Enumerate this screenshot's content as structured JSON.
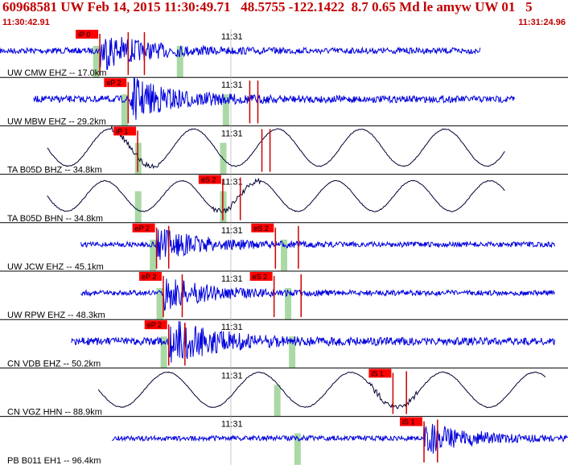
{
  "header": {
    "title": "60968581 UW Feb 14, 2015 11:30:49.71   48.5755 -122.1422  8.7 0.65 Md le amyw UW 01   5",
    "start_time": "11:30:42.91",
    "end_time": "11:31:24.96"
  },
  "colors": {
    "header_text": "#c00000",
    "trace_blue": "#0000dd",
    "trace_black": "#000033",
    "pick_box": "#ff0000",
    "pick_line": "#cc0000",
    "window": "#aad9a5",
    "tick_line": "#c8c8c8"
  },
  "chart_data": {
    "type": "line",
    "title": "60968581 UW Feb 14, 2015 11:30:49.71   48.5755 -122.1422  8.7 0.65 Md le amyw UW 01   5",
    "x_range": [
      "11:30:42.91",
      "11:31:24.96"
    ],
    "x_tick_label": "11:31",
    "x_tick_time": "11:31:00.00",
    "series": [
      {
        "name": "UW CMW EHZ -- 17.0km",
        "color": "blue",
        "wave": "noise",
        "amp": 0.35,
        "data_span": [
          "11:30:42.91",
          "11:31:18.5"
        ],
        "burst_time": "11:30:50.3",
        "picks": [
          {
            "label": "iP 0",
            "time": "11:30:50.3"
          }
        ],
        "windows": [
          "11:30:49.8",
          "11:30:56.0"
        ],
        "red_lines": [
          "11:30:52.4",
          "11:30:53.6"
        ]
      },
      {
        "name": "UW MBW EHZ -- 29.2km",
        "color": "blue",
        "wave": "noise",
        "amp": 0.4,
        "data_span": [
          "11:30:45.4",
          "11:31:21.0"
        ],
        "burst_time": "11:30:52.4",
        "picks": [
          {
            "label": "eP 2",
            "time": "11:30:52.4"
          }
        ],
        "windows": [
          "11:30:51.9",
          "11:30:59.4"
        ],
        "red_lines": [
          "11:31:01.4",
          "11:31:02.0"
        ]
      },
      {
        "name": "TA B05D BHZ -- 34.8km",
        "color": "black",
        "wave": "sine",
        "amp": 0.85,
        "period": 6.2,
        "data_span": [
          "11:30:46.4",
          "11:31:20.3"
        ],
        "burst_time": "11:30:52.9",
        "picks": [
          {
            "label": "iP 1",
            "time": "11:30:53.1"
          }
        ],
        "windows": [
          "11:30:52.9",
          "11:30:59.2"
        ],
        "red_lines": [
          "11:31:02.3",
          "11:31:02.9"
        ]
      },
      {
        "name": "TA B05D BHN -- 34.8km",
        "color": "black",
        "wave": "sine",
        "amp": 0.7,
        "period": 5.7,
        "data_span": [
          "11:30:46.4",
          "11:31:20.3"
        ],
        "burst_time": "11:31:00.4",
        "picks": [
          {
            "label": "eS 2",
            "time": "11:30:59.4"
          }
        ],
        "windows": [
          "11:30:52.9",
          "11:30:59.2"
        ],
        "red_lines": [
          "11:31:00.7"
        ]
      },
      {
        "name": "UW JCW EHZ -- 45.1km",
        "color": "blue",
        "wave": "noise",
        "amp": 0.3,
        "data_span": [
          "11:30:48.9",
          "11:31:24.0"
        ],
        "burst_time": "11:30:54.5",
        "picks": [
          {
            "label": "eP 2",
            "time": "11:30:54.5"
          },
          {
            "label": "eS 2",
            "time": "11:31:03.3"
          }
        ],
        "windows": [
          "11:30:54.0",
          "11:31:03.7"
        ],
        "red_lines": [
          "11:30:55.4",
          "11:31:05.0"
        ]
      },
      {
        "name": "UW RPW EHZ -- 48.3km",
        "color": "blue",
        "wave": "noise",
        "amp": 0.3,
        "data_span": [
          "11:30:48.9",
          "11:31:24.0"
        ],
        "burst_time": "11:30:55.0",
        "picks": [
          {
            "label": "eP 2",
            "time": "11:30:55.0"
          },
          {
            "label": "eS 2",
            "time": "11:31:03.2"
          }
        ],
        "windows": [
          "11:30:54.5",
          "11:31:04.0"
        ],
        "red_lines": [
          "11:30:56.4",
          "11:31:05.2"
        ]
      },
      {
        "name": "CN VDB EHZ -- 50.2km",
        "color": "blue",
        "wave": "noise",
        "amp": 0.45,
        "data_span": [
          "11:30:48.2",
          "11:31:24.0"
        ],
        "burst_time": "11:30:55.4",
        "picks": [
          {
            "label": "eP 2",
            "time": "11:30:55.4"
          }
        ],
        "windows": [
          "11:30:54.8",
          "11:31:04.3"
        ],
        "red_lines": [
          "11:30:56.6"
        ]
      },
      {
        "name": "CN VGZ HHN -- 88.9km",
        "color": "black",
        "wave": "sine",
        "amp": 0.8,
        "period": 6.8,
        "data_span": [
          "11:30:50.2",
          "11:31:23.3"
        ],
        "burst_time": "11:31:12.0",
        "picks": [
          {
            "label": "iS 1",
            "time": "11:31:12.0"
          }
        ],
        "windows": [
          "11:31:03.2",
          "11:31:03.6"
        ],
        "red_lines": [
          "11:31:13.0"
        ]
      },
      {
        "name": "PB B011 EH1 -- 96.4km",
        "color": "blue",
        "wave": "noise",
        "amp": 0.3,
        "data_span": [
          "11:30:51.2",
          "11:31:24.96"
        ],
        "burst_time": "11:31:14.3",
        "picks": [
          {
            "label": "iS 1",
            "time": "11:31:14.3"
          }
        ],
        "windows": [
          "11:31:04.7",
          "11:31:05.2"
        ],
        "red_lines": [
          "11:31:15.3"
        ]
      }
    ]
  }
}
